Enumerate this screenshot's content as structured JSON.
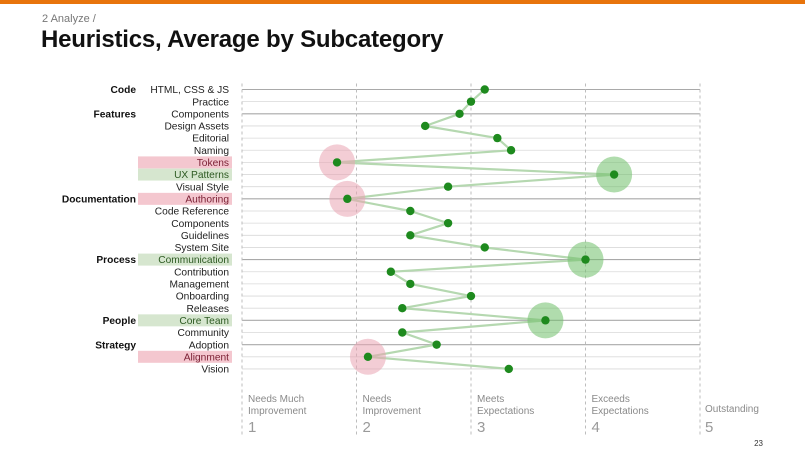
{
  "breadcrumb": "2 Analyze  /",
  "title": "Heuristics, Average by Subcategory",
  "page_number": "23",
  "colors": {
    "accent": "#e8740c",
    "dot": "#1e8a1e",
    "line": "#b5d8b0",
    "highlight_low": "#f4c7cf",
    "highlight_high": "#d6e6cf",
    "bubble_low": "#e9a4b3",
    "bubble_high": "#6fbf6a",
    "grid": "#c9c9c9"
  },
  "chart_data": {
    "type": "line",
    "title": "Heuristics, Average by Subcategory",
    "xlim": [
      1,
      5
    ],
    "scale": [
      {
        "value": 1,
        "label_lines": [
          "Needs Much",
          "Improvement"
        ],
        "number": "1"
      },
      {
        "value": 2,
        "label_lines": [
          "Needs",
          "Improvement"
        ],
        "number": "2"
      },
      {
        "value": 3,
        "label_lines": [
          "Meets",
          "Expectations"
        ],
        "number": "3"
      },
      {
        "value": 4,
        "label_lines": [
          "Exceeds",
          "Expectations"
        ],
        "number": "4"
      },
      {
        "value": 5,
        "label_lines": [
          "Outstanding"
        ],
        "number": "5"
      }
    ],
    "rows": [
      {
        "category": "Code",
        "subcategory": "HTML, CSS & JS",
        "value": 3.12,
        "highlight": "none"
      },
      {
        "category": "",
        "subcategory": "Practice",
        "value": 3.0,
        "highlight": "none"
      },
      {
        "category": "Features",
        "subcategory": "Components",
        "value": 2.9,
        "highlight": "none"
      },
      {
        "category": "",
        "subcategory": "Design Assets",
        "value": 2.6,
        "highlight": "none"
      },
      {
        "category": "",
        "subcategory": "Editorial",
        "value": 3.23,
        "highlight": "none"
      },
      {
        "category": "",
        "subcategory": "Naming",
        "value": 3.35,
        "highlight": "none"
      },
      {
        "category": "",
        "subcategory": "Tokens",
        "value": 1.83,
        "highlight": "low"
      },
      {
        "category": "",
        "subcategory": "UX Patterns",
        "value": 4.25,
        "highlight": "high"
      },
      {
        "category": "",
        "subcategory": "Visual Style",
        "value": 2.8,
        "highlight": "none"
      },
      {
        "category": "Documentation",
        "subcategory": "Authoring",
        "value": 1.92,
        "highlight": "low"
      },
      {
        "category": "",
        "subcategory": "Code Reference",
        "value": 2.47,
        "highlight": "none"
      },
      {
        "category": "",
        "subcategory": "Components",
        "value": 2.8,
        "highlight": "none"
      },
      {
        "category": "",
        "subcategory": "Guidelines",
        "value": 2.47,
        "highlight": "none"
      },
      {
        "category": "",
        "subcategory": "System Site",
        "value": 3.12,
        "highlight": "none"
      },
      {
        "category": "Process",
        "subcategory": "Communication",
        "value": 4.0,
        "highlight": "high"
      },
      {
        "category": "",
        "subcategory": "Contribution",
        "value": 2.3,
        "highlight": "none"
      },
      {
        "category": "",
        "subcategory": "Management",
        "value": 2.47,
        "highlight": "none"
      },
      {
        "category": "",
        "subcategory": "Onboarding",
        "value": 3.0,
        "highlight": "none"
      },
      {
        "category": "",
        "subcategory": "Releases",
        "value": 2.4,
        "highlight": "none"
      },
      {
        "category": "People",
        "subcategory": "Core Team",
        "value": 3.65,
        "highlight": "high"
      },
      {
        "category": "",
        "subcategory": "Community",
        "value": 2.4,
        "highlight": "none"
      },
      {
        "category": "Strategy",
        "subcategory": "Adoption",
        "value": 2.7,
        "highlight": "none"
      },
      {
        "category": "",
        "subcategory": "Alignment",
        "value": 2.1,
        "highlight": "low"
      },
      {
        "category": "",
        "subcategory": "Vision",
        "value": 3.33,
        "highlight": "none"
      }
    ]
  }
}
